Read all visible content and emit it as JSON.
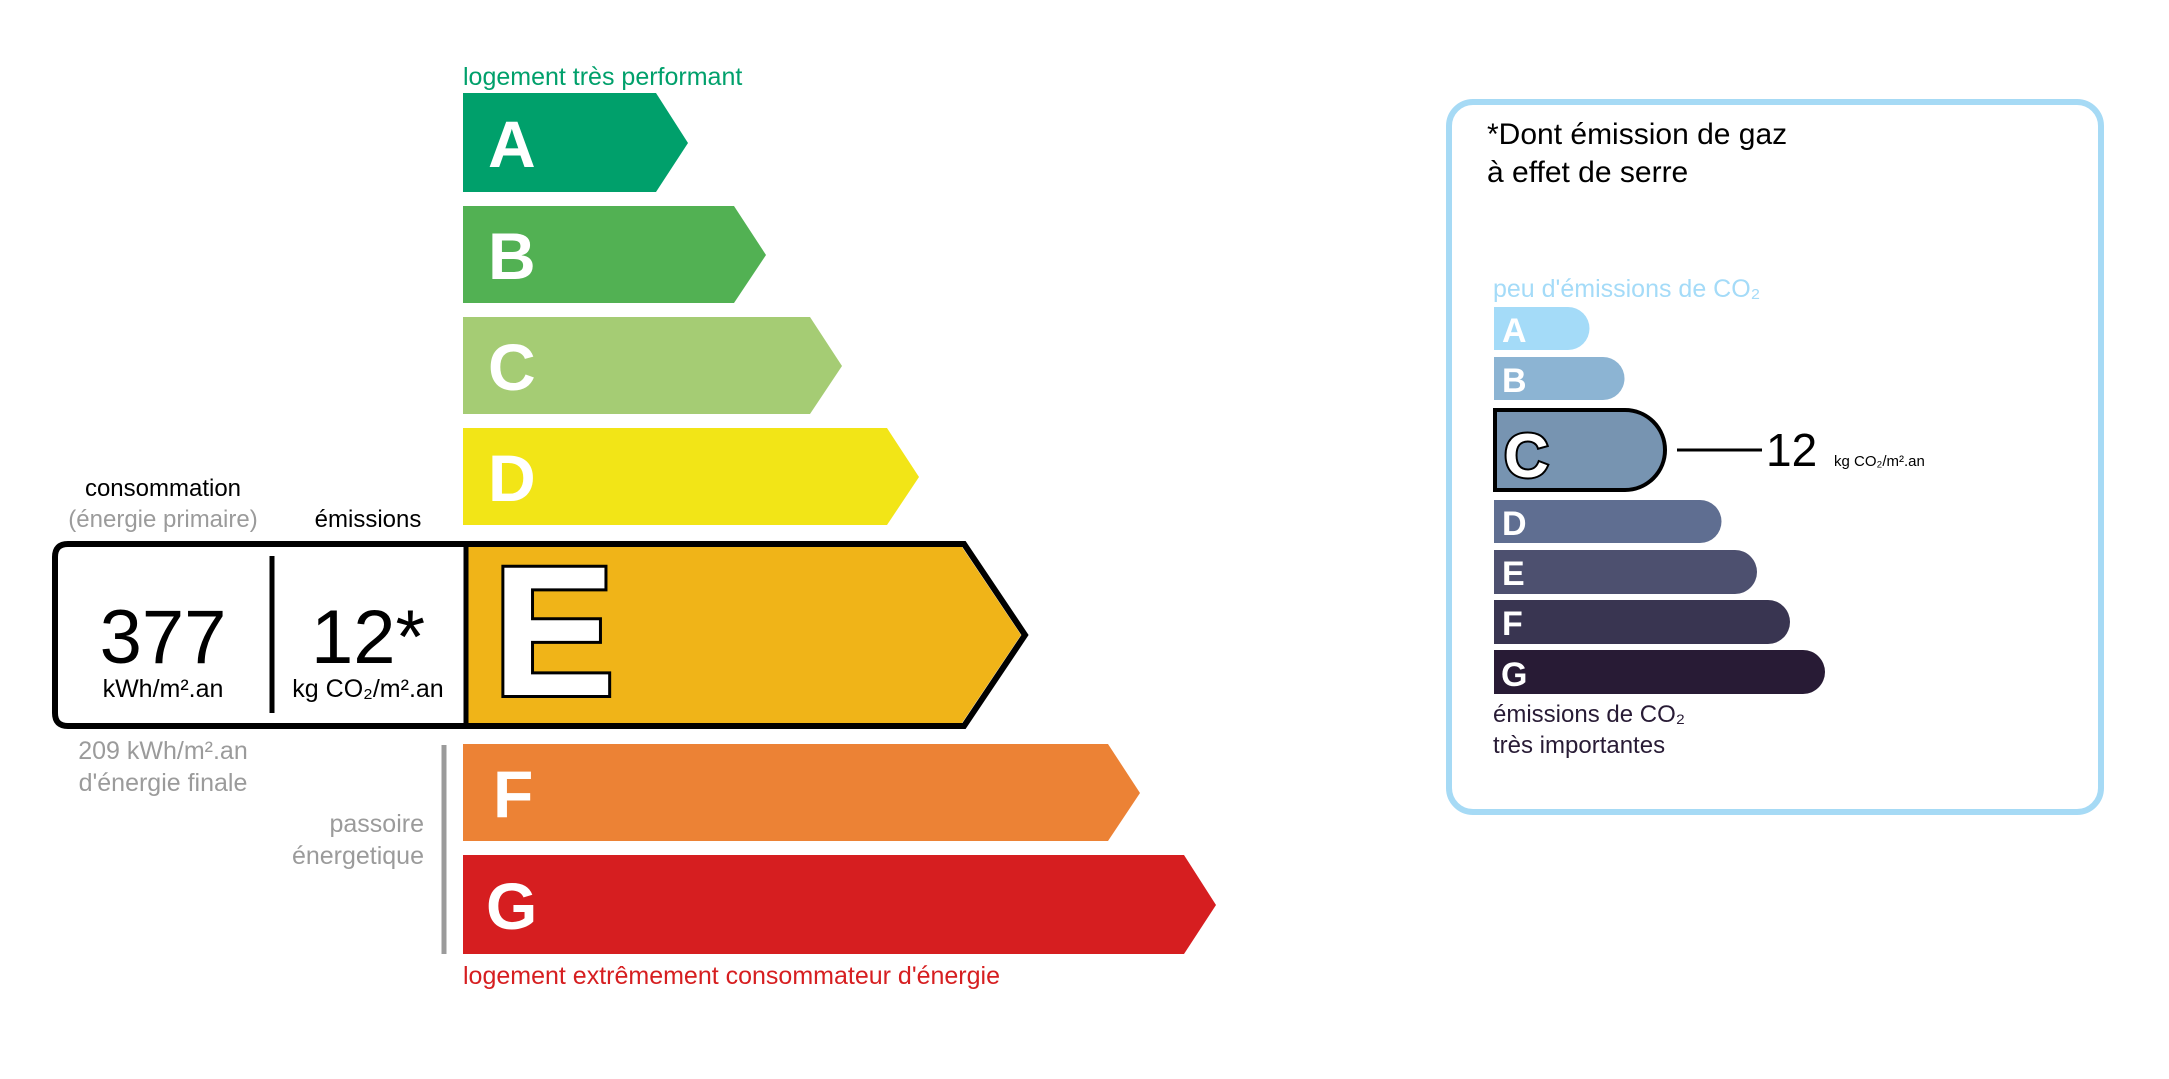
{
  "dpe": {
    "top_label": "logement très performant",
    "bottom_label": "logement extrêmement consommateur d'énergie",
    "passoire_line1": "passoire",
    "passoire_line2": "énergetique",
    "classes": [
      {
        "letter": "A",
        "color": "#00a06b"
      },
      {
        "letter": "B",
        "color": "#52b153"
      },
      {
        "letter": "C",
        "color": "#a5cc74"
      },
      {
        "letter": "D",
        "color": "#f2e517"
      },
      {
        "letter": "E",
        "color": "#f0b418"
      },
      {
        "letter": "F",
        "color": "#ec8235"
      },
      {
        "letter": "G",
        "color": "#d61e20"
      }
    ],
    "current_class": "E",
    "consumption_header": "consommation",
    "consumption_sub": "(énergie primaire)",
    "emissions_header": "émissions",
    "consumption_value": "377",
    "consumption_unit": "kWh/m².an",
    "emissions_value": "12*",
    "emissions_unit": "kg CO₂/m².an",
    "final_energy_line1": "209 kWh/m².an",
    "final_energy_line2": "d'énergie finale"
  },
  "ges": {
    "title_line1": "*Dont émission de gaz",
    "title_line2": "à effet de serre",
    "top_label": "peu d'émissions de CO₂",
    "bottom_label_line1": "émissions de CO₂",
    "bottom_label_line2": "très importantes",
    "classes": [
      {
        "letter": "A",
        "color": "#a4dbf8"
      },
      {
        "letter": "B",
        "color": "#8cb4d3"
      },
      {
        "letter": "C",
        "color": "#7794b1"
      },
      {
        "letter": "D",
        "color": "#5f6e91"
      },
      {
        "letter": "E",
        "color": "#4d506f"
      },
      {
        "letter": "F",
        "color": "#393551"
      },
      {
        "letter": "G",
        "color": "#281b35"
      }
    ],
    "current_class": "C",
    "value": "12",
    "unit": "kg CO₂/m².an",
    "border_color": "#a6daf5"
  }
}
